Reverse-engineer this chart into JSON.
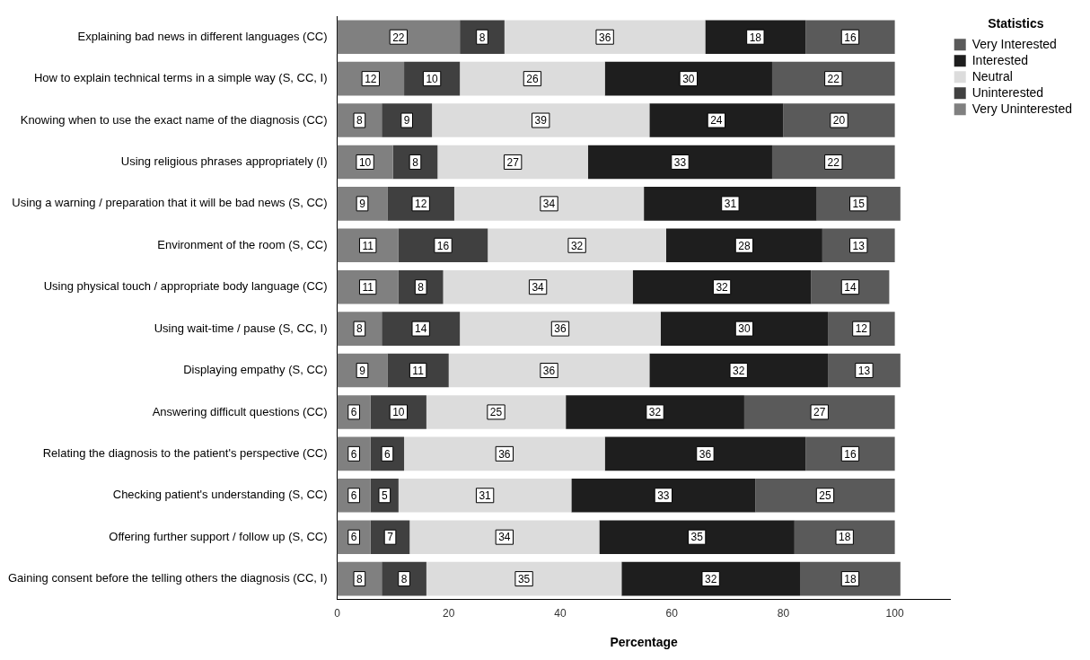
{
  "chart_data": {
    "type": "bar",
    "orientation": "horizontal",
    "stacked": true,
    "xlabel": "Percentage",
    "legend_title": "Statistics",
    "legend": "top right",
    "grid": false,
    "data_labels": true,
    "categories": [
      "Explaining bad news in different languages (CC)",
      "How to explain technical terms in a simple way (S, CC, I)",
      "Knowing when to use the exact name of the diagnosis (CC)",
      "Using religious phrases appropriately (I)",
      "Using a warning / preparation that it will be bad news (S, CC)",
      "Environment of the room (S, CC)",
      "Using physical touch / appropriate body language (CC)",
      "Using wait-time / pause (S, CC, I)",
      "Displaying empathy (S, CC)",
      "Answering difficult questions (CC)",
      "Relating the diagnosis to the patient's perspective (CC)",
      "Checking patient's understanding (S, CC)",
      "Offering further support / follow up (S, CC)",
      "Gaining consent before the telling others the diagnosis (CC, I)"
    ],
    "xlim": [
      0,
      110
    ],
    "xticks": [
      0,
      20,
      40,
      60,
      80,
      100
    ],
    "series": [
      {
        "name": "Very Uninterested",
        "color": "#808080",
        "values": [
          22,
          12,
          8,
          10,
          9,
          11,
          11,
          8,
          9,
          6,
          6,
          6,
          6,
          8
        ]
      },
      {
        "name": "Uninterested",
        "color": "#404040",
        "values": [
          8,
          10,
          9,
          8,
          12,
          16,
          8,
          14,
          11,
          10,
          6,
          5,
          7,
          8
        ]
      },
      {
        "name": "Neutral",
        "color": "#dcdcdc",
        "values": [
          36,
          26,
          39,
          27,
          34,
          32,
          34,
          36,
          36,
          25,
          36,
          31,
          34,
          35
        ]
      },
      {
        "name": "Interested",
        "color": "#1e1e1e",
        "values": [
          18,
          30,
          24,
          33,
          31,
          28,
          32,
          30,
          32,
          32,
          36,
          33,
          35,
          32
        ]
      },
      {
        "name": "Very Interested",
        "color": "#5a5a5a",
        "values": [
          16,
          22,
          20,
          22,
          15,
          13,
          14,
          12,
          13,
          27,
          16,
          25,
          18,
          18
        ]
      }
    ]
  }
}
